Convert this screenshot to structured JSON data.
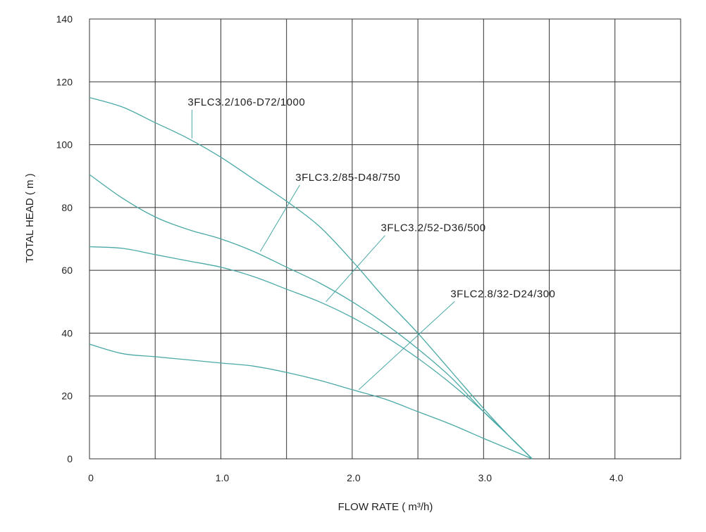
{
  "chart_data": {
    "type": "line",
    "xlabel": "FLOW RATE ( m³/h)",
    "ylabel": "TOTAL HEAD ( m )",
    "xlim": [
      0,
      4.5
    ],
    "ylim": [
      0,
      140
    ],
    "x_ticks": [
      {
        "value": 0,
        "label": "0"
      },
      {
        "value": 1.0,
        "label": "1.0"
      },
      {
        "value": 2.0,
        "label": "2.0"
      },
      {
        "value": 3.0,
        "label": "3.0"
      },
      {
        "value": 4.0,
        "label": "4.0"
      }
    ],
    "x_grid": [
      0,
      0.5,
      1.0,
      1.5,
      2.0,
      2.5,
      3.0,
      3.5,
      4.0,
      4.5
    ],
    "y_ticks": [
      {
        "value": 0,
        "label": "0"
      },
      {
        "value": 20,
        "label": "20"
      },
      {
        "value": 40,
        "label": "40"
      },
      {
        "value": 60,
        "label": "60"
      },
      {
        "value": 80,
        "label": "80"
      },
      {
        "value": 100,
        "label": "100"
      },
      {
        "value": 120,
        "label": "120"
      },
      {
        "value": 140,
        "label": "140"
      }
    ],
    "grid": true,
    "line_color": "#4aa9a6",
    "series": [
      {
        "name": "3FLC3.2/106-D72/1000",
        "points": [
          [
            0,
            115
          ],
          [
            0.25,
            112
          ],
          [
            0.5,
            107
          ],
          [
            0.75,
            102
          ],
          [
            1.0,
            96
          ],
          [
            1.25,
            89
          ],
          [
            1.5,
            82
          ],
          [
            1.75,
            74
          ],
          [
            2.0,
            63
          ],
          [
            2.25,
            51
          ],
          [
            2.5,
            40
          ],
          [
            2.75,
            28
          ],
          [
            3.0,
            16
          ],
          [
            3.2,
            7
          ],
          [
            3.37,
            0
          ]
        ],
        "label_anchor": [
          0.78,
          102
        ],
        "label_pos": [
          0.78,
          112
        ]
      },
      {
        "name": "3FLC3.2/85-D48/750",
        "points": [
          [
            0,
            90.5
          ],
          [
            0.25,
            83
          ],
          [
            0.5,
            77
          ],
          [
            0.75,
            73
          ],
          [
            1.0,
            70
          ],
          [
            1.25,
            66
          ],
          [
            1.5,
            61
          ],
          [
            1.75,
            56
          ],
          [
            2.0,
            50
          ],
          [
            2.25,
            43
          ],
          [
            2.5,
            35
          ],
          [
            2.75,
            26
          ],
          [
            3.0,
            15
          ],
          [
            3.2,
            7
          ],
          [
            3.37,
            0
          ]
        ],
        "label_anchor": [
          1.3,
          66
        ],
        "label_pos": [
          1.6,
          88
        ]
      },
      {
        "name": "3FLC3.2/52-D36/500",
        "points": [
          [
            0,
            67.5
          ],
          [
            0.25,
            67
          ],
          [
            0.5,
            65
          ],
          [
            0.75,
            63
          ],
          [
            1.0,
            61
          ],
          [
            1.25,
            58
          ],
          [
            1.5,
            54
          ],
          [
            1.75,
            50
          ],
          [
            2.0,
            45
          ],
          [
            2.25,
            39
          ],
          [
            2.5,
            32
          ],
          [
            2.75,
            24
          ],
          [
            3.0,
            15
          ],
          [
            3.2,
            7
          ],
          [
            3.37,
            0
          ]
        ],
        "label_anchor": [
          1.8,
          50
        ],
        "label_pos": [
          2.25,
          72
        ]
      },
      {
        "name": "3FLC2.8/32-D24/300",
        "points": [
          [
            0,
            36.5
          ],
          [
            0.25,
            33.5
          ],
          [
            0.5,
            32.5
          ],
          [
            0.75,
            31.5
          ],
          [
            1.0,
            30.5
          ],
          [
            1.25,
            29.5
          ],
          [
            1.5,
            27.5
          ],
          [
            1.75,
            25
          ],
          [
            2.0,
            22
          ],
          [
            2.25,
            19
          ],
          [
            2.5,
            15
          ],
          [
            2.75,
            11
          ],
          [
            3.0,
            6.5
          ],
          [
            3.2,
            3
          ],
          [
            3.37,
            0
          ]
        ],
        "label_anchor": [
          2.05,
          22
        ],
        "label_pos": [
          2.78,
          51
        ]
      }
    ]
  }
}
